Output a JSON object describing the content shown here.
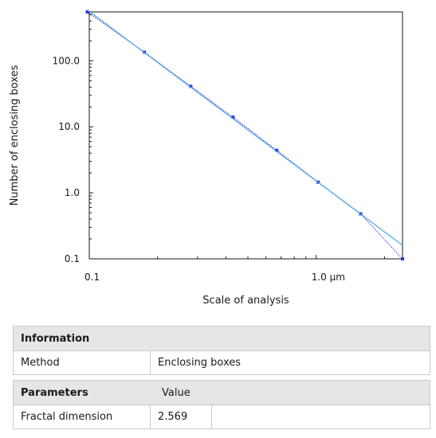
{
  "chart_data": {
    "type": "scatter",
    "xscale": "log",
    "yscale": "log",
    "xlim": [
      0.1,
      2.4
    ],
    "ylim": [
      0.1,
      550
    ],
    "xlabel": "Scale of analysis",
    "ylabel": "Number of enclosing boxes",
    "x_ticks": [
      {
        "value": 0.1,
        "label": "0.1"
      },
      {
        "value": 1.0,
        "label": "1.0 µm"
      }
    ],
    "y_ticks": [
      {
        "value": 0.1,
        "label": "0.1"
      },
      {
        "value": 1.0,
        "label": "1.0"
      },
      {
        "value": 10.0,
        "label": "10.0"
      },
      {
        "value": 100.0,
        "label": "100.0"
      }
    ],
    "grid": false,
    "series": [
      {
        "style": "markers-with-dotted-line",
        "color": "#2b36e6",
        "x": [
          0.098,
          0.175,
          0.28,
          0.43,
          0.67,
          1.02,
          1.57,
          2.4
        ],
        "y": [
          550,
          135,
          41,
          14,
          4.4,
          1.45,
          0.48,
          0.1
        ]
      },
      {
        "style": "fit-line",
        "color": "#4aa3e8",
        "x": [
          0.098,
          2.4
        ],
        "y": [
          590,
          0.16
        ]
      }
    ]
  },
  "info_table": {
    "header": "Information",
    "rows": [
      {
        "label": "Method",
        "value": "Enclosing boxes"
      }
    ]
  },
  "params_table": {
    "header": "Parameters",
    "value_header": "Value",
    "rows": [
      {
        "label": "Fractal dimension",
        "value": "2.569"
      }
    ]
  }
}
